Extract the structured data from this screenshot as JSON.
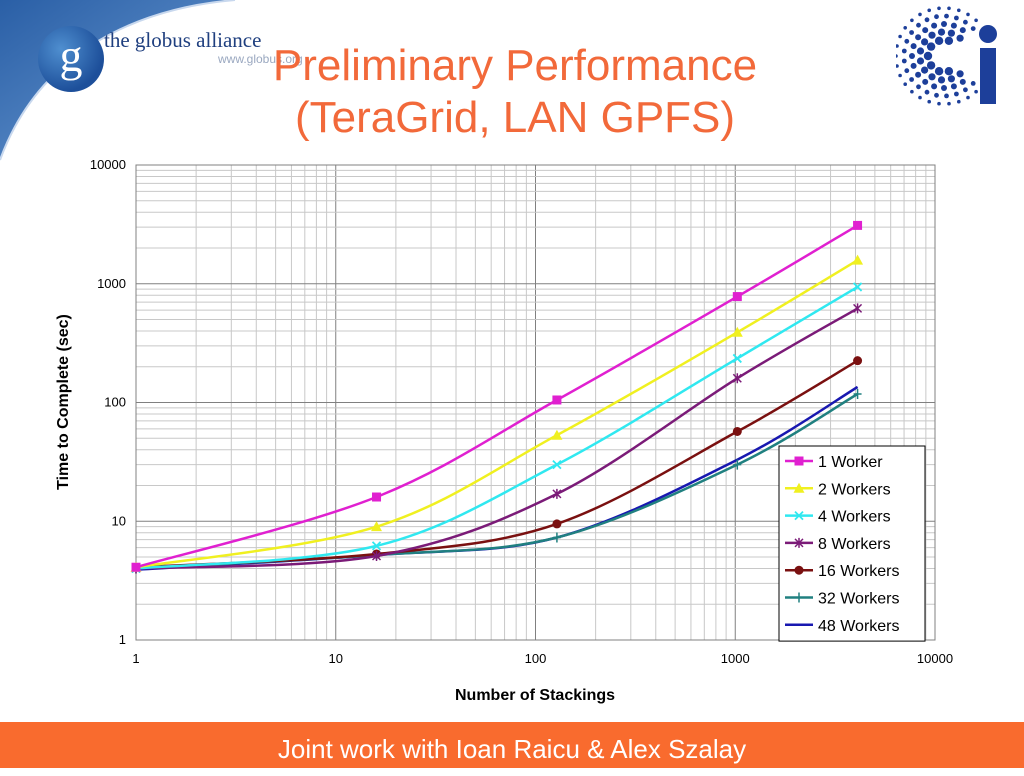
{
  "header": {
    "org_name": "the globus alliance",
    "org_url": "www.globus.org",
    "org_logo_letter": "g",
    "title_line1": "Preliminary Performance",
    "title_line2": "(TeraGrid, LAN GPFS)",
    "right_logo_letter": "i"
  },
  "footer": {
    "text": "Joint work with Ioan Raicu & Alex Szalay"
  },
  "colors": {
    "title": "#f2693a",
    "footer_bg": "#f96b2e",
    "logo_blue": "#1d4f9a"
  },
  "chart_data": {
    "type": "line",
    "title": "",
    "xlabel": "Number of Stackings",
    "ylabel": "Time to Complete (sec)",
    "xscale": "log",
    "yscale": "log",
    "xlim": [
      1,
      10000
    ],
    "ylim": [
      1,
      10000
    ],
    "x_ticks": [
      "1",
      "10",
      "100",
      "1000",
      "10000"
    ],
    "y_ticks": [
      "1",
      "10",
      "100",
      "1000",
      "10000"
    ],
    "grid": true,
    "legend_position": "bottom-right",
    "x": [
      1,
      16,
      128,
      1024,
      4096
    ],
    "series": [
      {
        "name": "1 Worker",
        "color": "#e020d0",
        "marker": "square",
        "values": [
          4.1,
          16,
          105,
          780,
          3100
        ]
      },
      {
        "name": "2 Workers",
        "color": "#f0f020",
        "marker": "triangle",
        "values": [
          4.1,
          9,
          53,
          390,
          1580
        ]
      },
      {
        "name": "4 Workers",
        "color": "#30e8f0",
        "marker": "cross",
        "values": [
          4.0,
          6.2,
          30,
          235,
          940
        ]
      },
      {
        "name": "8 Workers",
        "color": "#7b1b78",
        "marker": "star",
        "values": [
          4.0,
          5.1,
          17,
          160,
          620
        ]
      },
      {
        "name": "16 Workers",
        "color": "#7a1010",
        "marker": "circle",
        "values": [
          4.1,
          5.3,
          9.5,
          57,
          225
        ]
      },
      {
        "name": "32 Workers",
        "color": "#208080",
        "marker": "plus",
        "values": [
          4.0,
          5.2,
          7.3,
          30,
          118
        ]
      },
      {
        "name": "48 Workers",
        "color": "#1818b0",
        "marker": "none",
        "values": [
          3.9,
          5.2,
          7.3,
          33,
          135
        ]
      }
    ]
  }
}
